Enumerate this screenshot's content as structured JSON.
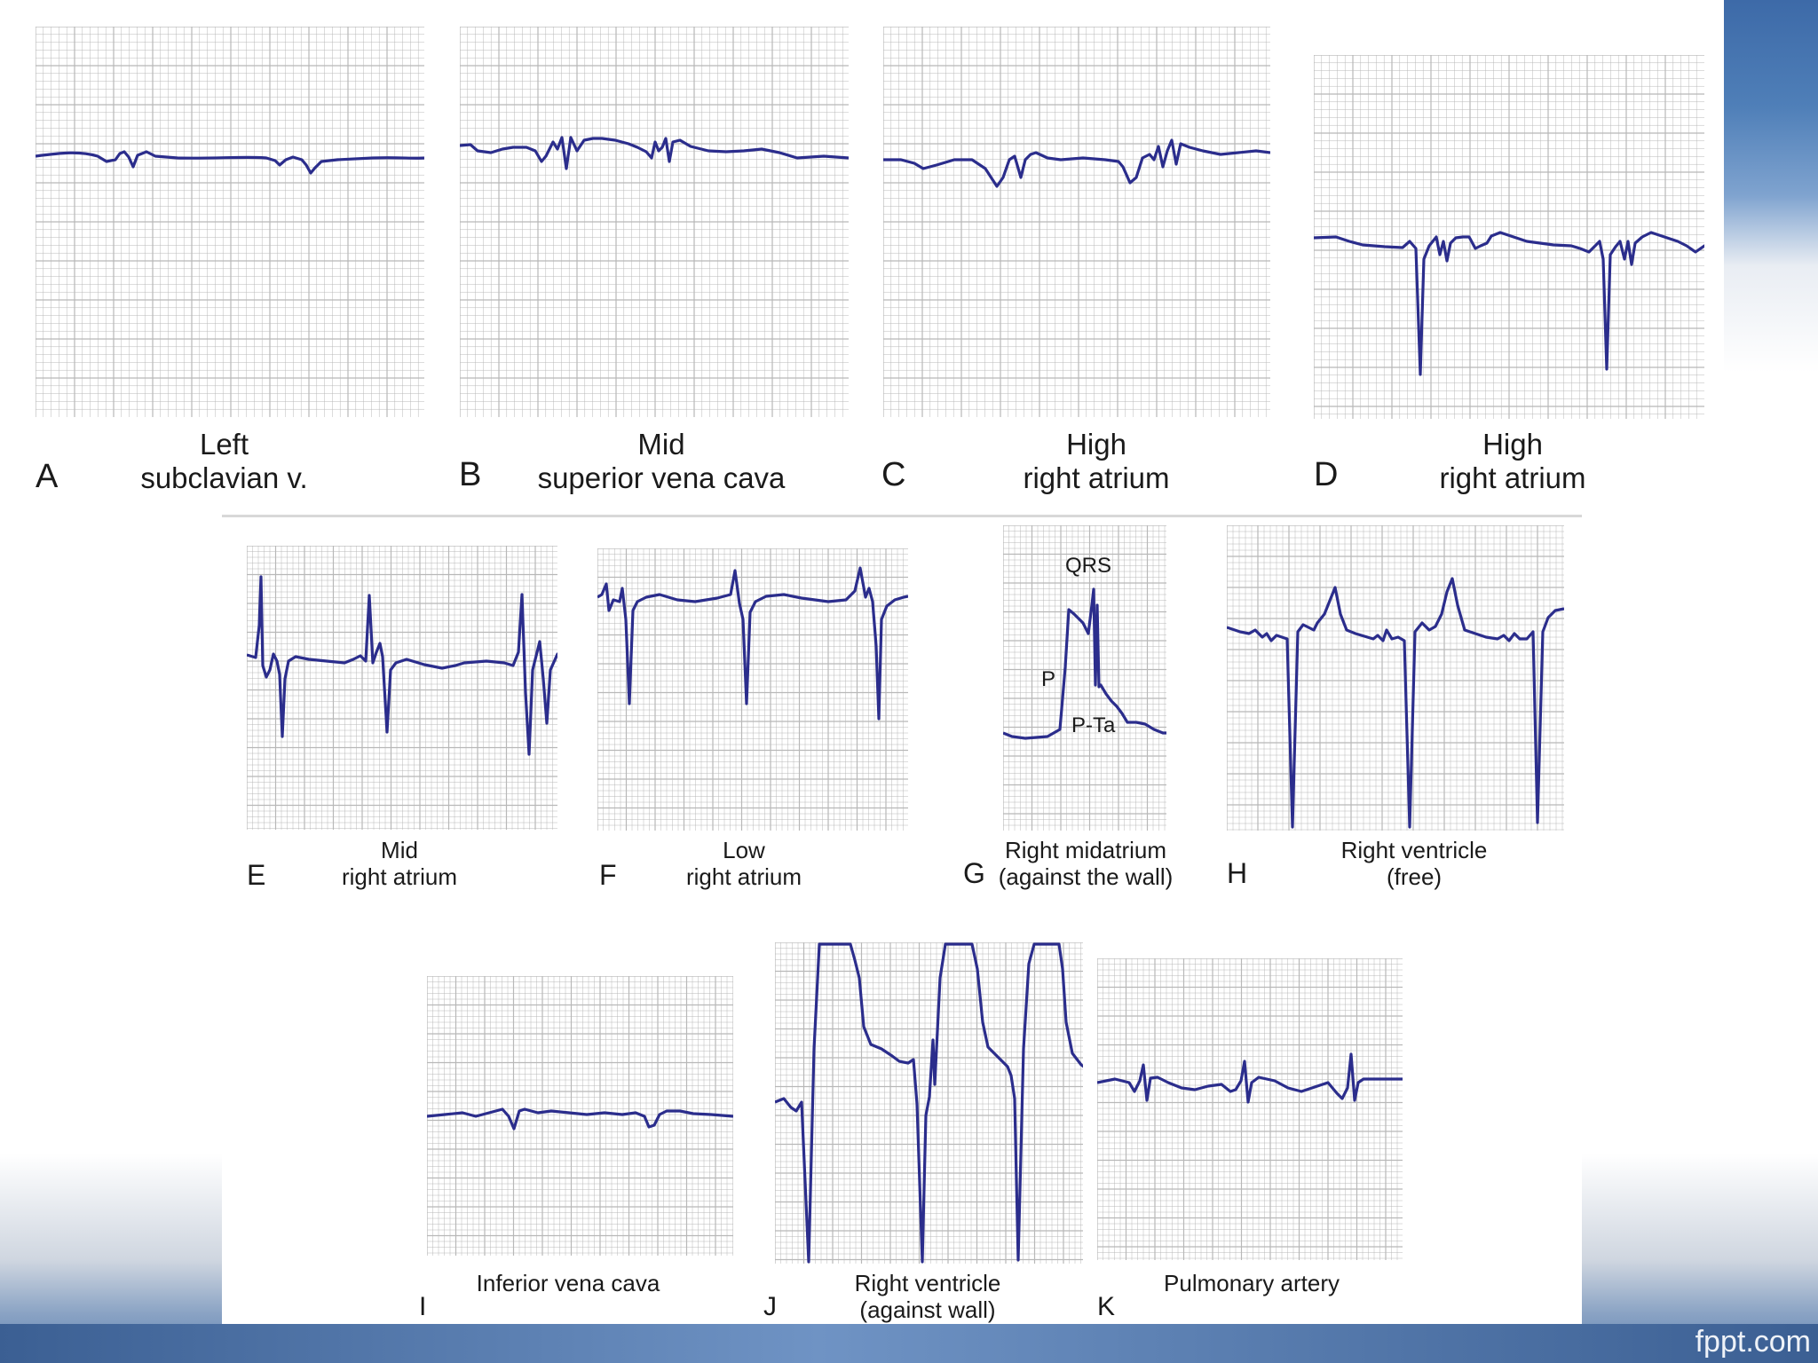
{
  "colors": {
    "trace": "#2b2d8c",
    "grid": "#b8b8b8",
    "accent": "#4f7fb8"
  },
  "brand": "fppt.com",
  "panels": [
    {
      "letter": "A",
      "caption1": "Left",
      "caption2": "subclavian v."
    },
    {
      "letter": "B",
      "caption1": "Mid",
      "caption2": "superior vena cava"
    },
    {
      "letter": "C",
      "caption1": "High",
      "caption2": "right atrium"
    },
    {
      "letter": "D",
      "caption1": "High",
      "caption2": "right atrium"
    },
    {
      "letter": "E",
      "caption1": "Mid",
      "caption2": "right atrium"
    },
    {
      "letter": "F",
      "caption1": "Low",
      "caption2": "right atrium"
    },
    {
      "letter": "G",
      "caption1": "Right midatrium",
      "caption2": "(against the wall)"
    },
    {
      "letter": "H",
      "caption1": "Right ventricle",
      "caption2": "(free)"
    },
    {
      "letter": "I",
      "caption1": "Inferior vena cava",
      "caption2": ""
    },
    {
      "letter": "J",
      "caption1": "Right ventricle",
      "caption2": "(against wall)"
    },
    {
      "letter": "K",
      "caption1": "Pulmonary artery",
      "caption2": ""
    }
  ],
  "annotations": {
    "qrs": "QRS",
    "p": "P",
    "pta": "P-Ta"
  }
}
